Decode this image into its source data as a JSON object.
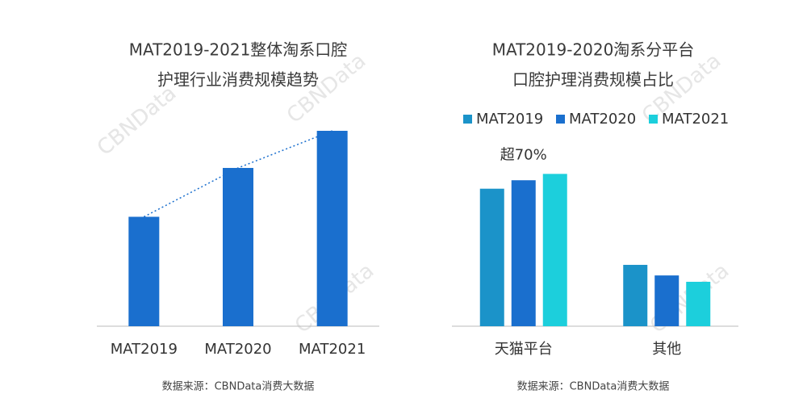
{
  "chart_data": [
    {
      "type": "bar",
      "title": [
        "MAT2019-2021整体淘系口腔",
        "护理行业消费规模趋势"
      ],
      "categories": [
        "MAT2019",
        "MAT2020",
        "MAT2021"
      ],
      "values": [
        56,
        81,
        100
      ],
      "color": "#1a6fce",
      "trend_line": true,
      "ylim": [
        0,
        100
      ],
      "source": "数据来源：CBNData消费大数据",
      "watermark": "CBNData"
    },
    {
      "type": "grouped-bar",
      "title": [
        "MAT2019-2020淘系分平台",
        "口腔护理消费规模占比"
      ],
      "categories": [
        "天猫平台",
        "其他"
      ],
      "series": [
        {
          "name": "MAT2019",
          "color": "#1b93c9",
          "values": [
            65,
            29
          ]
        },
        {
          "name": "MAT2020",
          "color": "#1a6fce",
          "values": [
            69,
            24
          ]
        },
        {
          "name": "MAT2021",
          "color": "#1ccfdc",
          "values": [
            72,
            21
          ]
        }
      ],
      "annotation": "超70%",
      "ylim": [
        0,
        100
      ],
      "source": "数据来源：CBNData消费大数据",
      "watermark": "CBNData"
    }
  ]
}
